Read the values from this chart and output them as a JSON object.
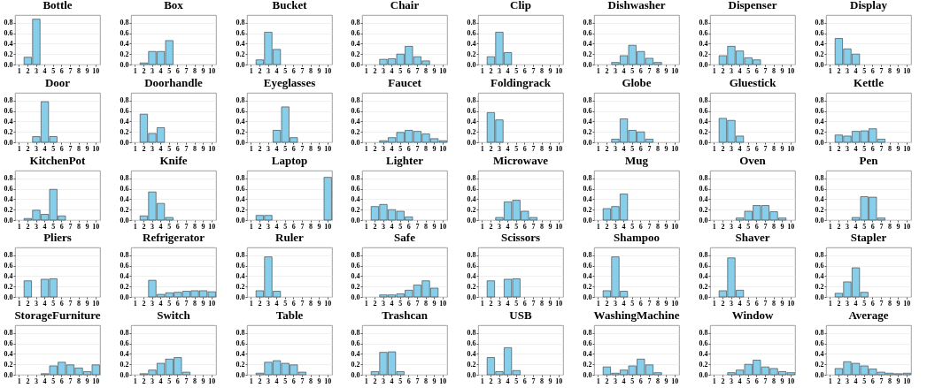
{
  "chart_data": [
    {
      "type": "bar",
      "title": "Bottle",
      "categories": [
        "1",
        "2",
        "3",
        "4",
        "5",
        "6",
        "7",
        "8",
        "9",
        "10"
      ],
      "values": [
        0,
        0.14,
        0.87,
        0,
        0,
        0,
        0,
        0,
        0,
        0
      ],
      "color": "#87ceeb",
      "ylim": [
        0,
        0.95
      ],
      "yticks": [
        {
          "value": 0,
          "label": "0.0"
        },
        {
          "value": 0.2,
          "label": "0.2"
        },
        {
          "value": 0.4,
          "label": "0.4"
        },
        {
          "value": 0.6,
          "label": "0.6"
        },
        {
          "value": 0.8,
          "label": "0.8"
        }
      ],
      "grid": "y"
    },
    {
      "type": "bar",
      "title": "Box",
      "categories": [
        "1",
        "2",
        "3",
        "4",
        "5",
        "6",
        "7",
        "8",
        "9",
        "10"
      ],
      "values": [
        0,
        0.03,
        0.25,
        0.25,
        0.46,
        0,
        0,
        0,
        0,
        0
      ],
      "color": "#87ceeb",
      "ylim": [
        0,
        0.95
      ],
      "yticks": [
        {
          "value": 0,
          "label": "0.0"
        },
        {
          "value": 0.2,
          "label": "0.2"
        },
        {
          "value": 0.4,
          "label": "0.4"
        },
        {
          "value": 0.6,
          "label": "0.6"
        },
        {
          "value": 0.8,
          "label": "0.8"
        }
      ],
      "grid": "y"
    },
    {
      "type": "bar",
      "title": "Bucket",
      "categories": [
        "1",
        "2",
        "3",
        "4",
        "5",
        "6",
        "7",
        "8",
        "9",
        "10"
      ],
      "values": [
        0,
        0.09,
        0.62,
        0.29,
        0,
        0,
        0,
        0,
        0,
        0
      ],
      "color": "#87ceeb",
      "ylim": [
        0,
        0.95
      ],
      "yticks": [
        {
          "value": 0,
          "label": "0.0"
        },
        {
          "value": 0.2,
          "label": "0.2"
        },
        {
          "value": 0.4,
          "label": "0.4"
        },
        {
          "value": 0.6,
          "label": "0.6"
        },
        {
          "value": 0.8,
          "label": "0.8"
        }
      ],
      "grid": "y"
    },
    {
      "type": "bar",
      "title": "Chair",
      "categories": [
        "1",
        "2",
        "3",
        "4",
        "5",
        "6",
        "7",
        "8",
        "9",
        "10"
      ],
      "values": [
        0,
        0,
        0.1,
        0.11,
        0.2,
        0.35,
        0.15,
        0.07,
        0,
        0
      ],
      "color": "#87ceeb",
      "ylim": [
        0,
        0.95
      ],
      "yticks": [
        {
          "value": 0,
          "label": "0.0"
        },
        {
          "value": 0.2,
          "label": "0.2"
        },
        {
          "value": 0.4,
          "label": "0.4"
        },
        {
          "value": 0.6,
          "label": "0.6"
        },
        {
          "value": 0.8,
          "label": "0.8"
        }
      ],
      "grid": "y"
    },
    {
      "type": "bar",
      "title": "Clip",
      "categories": [
        "1",
        "2",
        "3",
        "4",
        "5",
        "6",
        "7",
        "8",
        "9",
        "10"
      ],
      "values": [
        0,
        0.15,
        0.62,
        0.23,
        0,
        0,
        0,
        0,
        0,
        0
      ],
      "color": "#87ceeb",
      "ylim": [
        0,
        0.95
      ],
      "yticks": [
        {
          "value": 0,
          "label": "0.0"
        },
        {
          "value": 0.2,
          "label": "0.2"
        },
        {
          "value": 0.4,
          "label": "0.4"
        },
        {
          "value": 0.6,
          "label": "0.6"
        },
        {
          "value": 0.8,
          "label": "0.8"
        }
      ],
      "grid": "y"
    },
    {
      "type": "bar",
      "title": "Dishwasher",
      "categories": [
        "1",
        "2",
        "3",
        "4",
        "5",
        "6",
        "7",
        "8",
        "9",
        "10"
      ],
      "values": [
        0,
        0,
        0.04,
        0.17,
        0.37,
        0.25,
        0.12,
        0.04,
        0,
        0
      ],
      "color": "#87ceeb",
      "ylim": [
        0,
        0.95
      ],
      "yticks": [
        {
          "value": 0,
          "label": "0.0"
        },
        {
          "value": 0.2,
          "label": "0.2"
        },
        {
          "value": 0.4,
          "label": "0.4"
        },
        {
          "value": 0.6,
          "label": "0.6"
        },
        {
          "value": 0.8,
          "label": "0.8"
        }
      ],
      "grid": "y"
    },
    {
      "type": "bar",
      "title": "Dispenser",
      "categories": [
        "1",
        "2",
        "3",
        "4",
        "5",
        "6",
        "7",
        "8",
        "9",
        "10"
      ],
      "values": [
        0,
        0.17,
        0.35,
        0.26,
        0.13,
        0.09,
        0,
        0,
        0,
        0
      ],
      "color": "#87ceeb",
      "ylim": [
        0,
        0.95
      ],
      "yticks": [
        {
          "value": 0,
          "label": "0.0"
        },
        {
          "value": 0.2,
          "label": "0.2"
        },
        {
          "value": 0.4,
          "label": "0.4"
        },
        {
          "value": 0.6,
          "label": "0.6"
        },
        {
          "value": 0.8,
          "label": "0.8"
        }
      ],
      "grid": "y"
    },
    {
      "type": "bar",
      "title": "Display",
      "categories": [
        "1",
        "2",
        "3",
        "4",
        "5",
        "6",
        "7",
        "8",
        "9",
        "10"
      ],
      "values": [
        0,
        0.5,
        0.3,
        0.2,
        0,
        0,
        0,
        0,
        0,
        0
      ],
      "color": "#87ceeb",
      "ylim": [
        0,
        0.95
      ],
      "yticks": [
        {
          "value": 0,
          "label": "0.0"
        },
        {
          "value": 0.2,
          "label": "0.2"
        },
        {
          "value": 0.4,
          "label": "0.4"
        },
        {
          "value": 0.6,
          "label": "0.6"
        },
        {
          "value": 0.8,
          "label": "0.8"
        }
      ],
      "grid": "y"
    },
    {
      "type": "bar",
      "title": "Door",
      "categories": [
        "1",
        "2",
        "3",
        "4",
        "5",
        "6",
        "7",
        "8",
        "9",
        "10"
      ],
      "values": [
        0,
        0,
        0.11,
        0.78,
        0.11,
        0,
        0,
        0,
        0,
        0
      ],
      "color": "#87ceeb",
      "ylim": [
        0,
        0.95
      ],
      "yticks": [
        {
          "value": 0,
          "label": "0.0"
        },
        {
          "value": 0.2,
          "label": "0.2"
        },
        {
          "value": 0.4,
          "label": "0.4"
        },
        {
          "value": 0.6,
          "label": "0.6"
        },
        {
          "value": 0.8,
          "label": "0.8"
        }
      ],
      "grid": "y"
    },
    {
      "type": "bar",
      "title": "Doorhandle",
      "categories": [
        "1",
        "2",
        "3",
        "4",
        "5",
        "6",
        "7",
        "8",
        "9",
        "10"
      ],
      "values": [
        0,
        0.54,
        0.17,
        0.28,
        0,
        0,
        0,
        0,
        0,
        0
      ],
      "color": "#87ceeb",
      "ylim": [
        0,
        0.95
      ],
      "yticks": [
        {
          "value": 0,
          "label": "0.0"
        },
        {
          "value": 0.2,
          "label": "0.2"
        },
        {
          "value": 0.4,
          "label": "0.4"
        },
        {
          "value": 0.6,
          "label": "0.6"
        },
        {
          "value": 0.8,
          "label": "0.8"
        }
      ],
      "grid": "y"
    },
    {
      "type": "bar",
      "title": "Eyeglasses",
      "categories": [
        "1",
        "2",
        "3",
        "4",
        "5",
        "6",
        "7",
        "8",
        "9",
        "10"
      ],
      "values": [
        0,
        0,
        0,
        0.23,
        0.68,
        0.09,
        0,
        0,
        0,
        0
      ],
      "color": "#87ceeb",
      "ylim": [
        0,
        0.95
      ],
      "yticks": [
        {
          "value": 0,
          "label": "0.0"
        },
        {
          "value": 0.2,
          "label": "0.2"
        },
        {
          "value": 0.4,
          "label": "0.4"
        },
        {
          "value": 0.6,
          "label": "0.6"
        },
        {
          "value": 0.8,
          "label": "0.8"
        }
      ],
      "grid": "y"
    },
    {
      "type": "bar",
      "title": "Faucet",
      "categories": [
        "1",
        "2",
        "3",
        "4",
        "5",
        "6",
        "7",
        "8",
        "9",
        "10"
      ],
      "values": [
        0,
        0,
        0.03,
        0.09,
        0.19,
        0.23,
        0.21,
        0.16,
        0.07,
        0.03
      ],
      "color": "#87ceeb",
      "ylim": [
        0,
        0.95
      ],
      "yticks": [
        {
          "value": 0,
          "label": "0.0"
        },
        {
          "value": 0.2,
          "label": "0.2"
        },
        {
          "value": 0.4,
          "label": "0.4"
        },
        {
          "value": 0.6,
          "label": "0.6"
        },
        {
          "value": 0.8,
          "label": "0.8"
        }
      ],
      "grid": "y"
    },
    {
      "type": "bar",
      "title": "Foldingrack",
      "categories": [
        "1",
        "2",
        "3",
        "4",
        "5",
        "6",
        "7",
        "8",
        "9",
        "10"
      ],
      "values": [
        0,
        0.57,
        0.43,
        0,
        0,
        0,
        0,
        0,
        0,
        0
      ],
      "color": "#87ceeb",
      "ylim": [
        0,
        0.95
      ],
      "yticks": [
        {
          "value": 0,
          "label": "0.0"
        },
        {
          "value": 0.2,
          "label": "0.2"
        },
        {
          "value": 0.4,
          "label": "0.4"
        },
        {
          "value": 0.6,
          "label": "0.6"
        },
        {
          "value": 0.8,
          "label": "0.8"
        }
      ],
      "grid": "y"
    },
    {
      "type": "bar",
      "title": "Globe",
      "categories": [
        "1",
        "2",
        "3",
        "4",
        "5",
        "6",
        "7",
        "8",
        "9",
        "10"
      ],
      "values": [
        0,
        0,
        0.06,
        0.45,
        0.23,
        0.2,
        0.06,
        0,
        0,
        0
      ],
      "color": "#87ceeb",
      "ylim": [
        0,
        0.95
      ],
      "yticks": [
        {
          "value": 0,
          "label": "0.0"
        },
        {
          "value": 0.2,
          "label": "0.2"
        },
        {
          "value": 0.4,
          "label": "0.4"
        },
        {
          "value": 0.6,
          "label": "0.6"
        },
        {
          "value": 0.8,
          "label": "0.8"
        }
      ],
      "grid": "y"
    },
    {
      "type": "bar",
      "title": "Gluestick",
      "categories": [
        "1",
        "2",
        "3",
        "4",
        "5",
        "6",
        "7",
        "8",
        "9",
        "10"
      ],
      "values": [
        0,
        0.46,
        0.42,
        0.12,
        0,
        0,
        0,
        0,
        0,
        0
      ],
      "color": "#87ceeb",
      "ylim": [
        0,
        0.95
      ],
      "yticks": [
        {
          "value": 0,
          "label": "0.0"
        },
        {
          "value": 0.2,
          "label": "0.2"
        },
        {
          "value": 0.4,
          "label": "0.4"
        },
        {
          "value": 0.6,
          "label": "0.6"
        },
        {
          "value": 0.8,
          "label": "0.8"
        }
      ],
      "grid": "y"
    },
    {
      "type": "bar",
      "title": "Kettle",
      "categories": [
        "1",
        "2",
        "3",
        "4",
        "5",
        "6",
        "7",
        "8",
        "9",
        "10"
      ],
      "values": [
        0,
        0.14,
        0.12,
        0.21,
        0.22,
        0.26,
        0.06,
        0,
        0,
        0
      ],
      "color": "#87ceeb",
      "ylim": [
        0,
        0.95
      ],
      "yticks": [
        {
          "value": 0,
          "label": "0.0"
        },
        {
          "value": 0.2,
          "label": "0.2"
        },
        {
          "value": 0.4,
          "label": "0.4"
        },
        {
          "value": 0.6,
          "label": "0.6"
        },
        {
          "value": 0.8,
          "label": "0.8"
        }
      ],
      "grid": "y"
    },
    {
      "type": "bar",
      "title": "KitchenPot",
      "categories": [
        "1",
        "2",
        "3",
        "4",
        "5",
        "6",
        "7",
        "8",
        "9",
        "10"
      ],
      "values": [
        0,
        0.03,
        0.19,
        0.11,
        0.59,
        0.08,
        0,
        0,
        0,
        0
      ],
      "color": "#87ceeb",
      "ylim": [
        0,
        0.95
      ],
      "yticks": [
        {
          "value": 0,
          "label": "0.0"
        },
        {
          "value": 0.2,
          "label": "0.2"
        },
        {
          "value": 0.4,
          "label": "0.4"
        },
        {
          "value": 0.6,
          "label": "0.6"
        },
        {
          "value": 0.8,
          "label": "0.8"
        }
      ],
      "grid": "y"
    },
    {
      "type": "bar",
      "title": "Knife",
      "categories": [
        "1",
        "2",
        "3",
        "4",
        "5",
        "6",
        "7",
        "8",
        "9",
        "10"
      ],
      "values": [
        0,
        0.08,
        0.54,
        0.32,
        0.05,
        0,
        0,
        0,
        0,
        0
      ],
      "color": "#87ceeb",
      "ylim": [
        0,
        0.95
      ],
      "yticks": [
        {
          "value": 0,
          "label": "0.0"
        },
        {
          "value": 0.2,
          "label": "0.2"
        },
        {
          "value": 0.4,
          "label": "0.4"
        },
        {
          "value": 0.6,
          "label": "0.6"
        },
        {
          "value": 0.8,
          "label": "0.8"
        }
      ],
      "grid": "y"
    },
    {
      "type": "bar",
      "title": "Laptop",
      "categories": [
        "1",
        "2",
        "3",
        "4",
        "5",
        "6",
        "7",
        "8",
        "9",
        "10"
      ],
      "values": [
        0,
        0.09,
        0.09,
        0,
        0,
        0,
        0,
        0,
        0,
        0.82
      ],
      "color": "#87ceeb",
      "ylim": [
        0,
        0.95
      ],
      "yticks": [
        {
          "value": 0,
          "label": "0.0"
        },
        {
          "value": 0.2,
          "label": "0.2"
        },
        {
          "value": 0.4,
          "label": "0.4"
        },
        {
          "value": 0.6,
          "label": "0.6"
        },
        {
          "value": 0.8,
          "label": "0.8"
        }
      ],
      "grid": "y"
    },
    {
      "type": "bar",
      "title": "Lighter",
      "categories": [
        "1",
        "2",
        "3",
        "4",
        "5",
        "6",
        "7",
        "8",
        "9",
        "10"
      ],
      "values": [
        0,
        0.26,
        0.3,
        0.2,
        0.17,
        0.06,
        0,
        0,
        0,
        0
      ],
      "color": "#87ceeb",
      "ylim": [
        0,
        0.95
      ],
      "yticks": [
        {
          "value": 0,
          "label": "0.0"
        },
        {
          "value": 0.2,
          "label": "0.2"
        },
        {
          "value": 0.4,
          "label": "0.4"
        },
        {
          "value": 0.6,
          "label": "0.6"
        },
        {
          "value": 0.8,
          "label": "0.8"
        }
      ],
      "grid": "y"
    },
    {
      "type": "bar",
      "title": "Microwave",
      "categories": [
        "1",
        "2",
        "3",
        "4",
        "5",
        "6",
        "7",
        "8",
        "9",
        "10"
      ],
      "values": [
        0,
        0,
        0.05,
        0.35,
        0.38,
        0.17,
        0.05,
        0,
        0,
        0
      ],
      "color": "#87ceeb",
      "ylim": [
        0,
        0.95
      ],
      "yticks": [
        {
          "value": 0,
          "label": "0.0"
        },
        {
          "value": 0.2,
          "label": "0.2"
        },
        {
          "value": 0.4,
          "label": "0.4"
        },
        {
          "value": 0.6,
          "label": "0.6"
        },
        {
          "value": 0.8,
          "label": "0.8"
        }
      ],
      "grid": "y"
    },
    {
      "type": "bar",
      "title": "Mug",
      "categories": [
        "1",
        "2",
        "3",
        "4",
        "5",
        "6",
        "7",
        "8",
        "9",
        "10"
      ],
      "values": [
        0,
        0.22,
        0.26,
        0.5,
        0,
        0,
        0,
        0,
        0,
        0
      ],
      "color": "#87ceeb",
      "ylim": [
        0,
        0.95
      ],
      "yticks": [
        {
          "value": 0,
          "label": "0.0"
        },
        {
          "value": 0.2,
          "label": "0.2"
        },
        {
          "value": 0.4,
          "label": "0.4"
        },
        {
          "value": 0.6,
          "label": "0.6"
        },
        {
          "value": 0.8,
          "label": "0.8"
        }
      ],
      "grid": "y"
    },
    {
      "type": "bar",
      "title": "Oven",
      "categories": [
        "1",
        "2",
        "3",
        "4",
        "5",
        "6",
        "7",
        "8",
        "9",
        "10"
      ],
      "values": [
        0,
        0,
        0,
        0.04,
        0.17,
        0.28,
        0.28,
        0.16,
        0.04,
        0
      ],
      "color": "#87ceeb",
      "ylim": [
        0,
        0.95
      ],
      "yticks": [
        {
          "value": 0,
          "label": "0.0"
        },
        {
          "value": 0.2,
          "label": "0.2"
        },
        {
          "value": 0.4,
          "label": "0.4"
        },
        {
          "value": 0.6,
          "label": "0.6"
        },
        {
          "value": 0.8,
          "label": "0.8"
        }
      ],
      "grid": "y"
    },
    {
      "type": "bar",
      "title": "Pen",
      "categories": [
        "1",
        "2",
        "3",
        "4",
        "5",
        "6",
        "7",
        "8",
        "9",
        "10"
      ],
      "values": [
        0,
        0,
        0,
        0.05,
        0.45,
        0.44,
        0.04,
        0,
        0,
        0
      ],
      "color": "#87ceeb",
      "ylim": [
        0,
        0.95
      ],
      "yticks": [
        {
          "value": 0,
          "label": "0.0"
        },
        {
          "value": 0.2,
          "label": "0.2"
        },
        {
          "value": 0.4,
          "label": "0.4"
        },
        {
          "value": 0.6,
          "label": "0.6"
        },
        {
          "value": 0.8,
          "label": "0.8"
        }
      ],
      "grid": "y"
    },
    {
      "type": "bar",
      "title": "Pliers",
      "categories": [
        "1",
        "2",
        "3",
        "4",
        "5",
        "6",
        "7",
        "8",
        "9",
        "10"
      ],
      "values": [
        0,
        0.31,
        0,
        0.34,
        0.35,
        0,
        0,
        0,
        0,
        0
      ],
      "color": "#87ceeb",
      "ylim": [
        0,
        0.95
      ],
      "yticks": [
        {
          "value": 0,
          "label": "0.0"
        },
        {
          "value": 0.2,
          "label": "0.2"
        },
        {
          "value": 0.4,
          "label": "0.4"
        },
        {
          "value": 0.6,
          "label": "0.6"
        },
        {
          "value": 0.8,
          "label": "0.8"
        }
      ],
      "grid": "y"
    },
    {
      "type": "bar",
      "title": "Refrigerator",
      "categories": [
        "1",
        "2",
        "3",
        "4",
        "5",
        "6",
        "7",
        "8",
        "9",
        "10"
      ],
      "values": [
        0,
        0,
        0.32,
        0.05,
        0.08,
        0.09,
        0.11,
        0.12,
        0.12,
        0.1
      ],
      "color": "#87ceeb",
      "ylim": [
        0,
        0.95
      ],
      "yticks": [
        {
          "value": 0,
          "label": "0.0"
        },
        {
          "value": 0.2,
          "label": "0.2"
        },
        {
          "value": 0.4,
          "label": "0.4"
        },
        {
          "value": 0.6,
          "label": "0.6"
        },
        {
          "value": 0.8,
          "label": "0.8"
        }
      ],
      "grid": "y"
    },
    {
      "type": "bar",
      "title": "Ruler",
      "categories": [
        "1",
        "2",
        "3",
        "4",
        "5",
        "6",
        "7",
        "8",
        "9",
        "10"
      ],
      "values": [
        0,
        0.12,
        0.77,
        0.11,
        0,
        0,
        0,
        0,
        0,
        0
      ],
      "color": "#87ceeb",
      "ylim": [
        0,
        0.95
      ],
      "yticks": [
        {
          "value": 0,
          "label": "0.0"
        },
        {
          "value": 0.2,
          "label": "0.2"
        },
        {
          "value": 0.4,
          "label": "0.4"
        },
        {
          "value": 0.6,
          "label": "0.6"
        },
        {
          "value": 0.8,
          "label": "0.8"
        }
      ],
      "grid": "y"
    },
    {
      "type": "bar",
      "title": "Safe",
      "categories": [
        "1",
        "2",
        "3",
        "4",
        "5",
        "6",
        "7",
        "8",
        "9",
        "10"
      ],
      "values": [
        0,
        0,
        0.04,
        0.04,
        0.06,
        0.13,
        0.23,
        0.31,
        0.17,
        0
      ],
      "color": "#87ceeb",
      "ylim": [
        0,
        0.95
      ],
      "yticks": [
        {
          "value": 0,
          "label": "0.0"
        },
        {
          "value": 0.2,
          "label": "0.2"
        },
        {
          "value": 0.4,
          "label": "0.4"
        },
        {
          "value": 0.6,
          "label": "0.6"
        },
        {
          "value": 0.8,
          "label": "0.8"
        }
      ],
      "grid": "y"
    },
    {
      "type": "bar",
      "title": "Scissors",
      "categories": [
        "1",
        "2",
        "3",
        "4",
        "5",
        "6",
        "7",
        "8",
        "9",
        "10"
      ],
      "values": [
        0,
        0.31,
        0,
        0.34,
        0.35,
        0,
        0,
        0,
        0,
        0
      ],
      "color": "#87ceeb",
      "ylim": [
        0,
        0.95
      ],
      "yticks": [
        {
          "value": 0,
          "label": "0.0"
        },
        {
          "value": 0.2,
          "label": "0.2"
        },
        {
          "value": 0.4,
          "label": "0.4"
        },
        {
          "value": 0.6,
          "label": "0.6"
        },
        {
          "value": 0.8,
          "label": "0.8"
        }
      ],
      "grid": "y"
    },
    {
      "type": "bar",
      "title": "Shampoo",
      "categories": [
        "1",
        "2",
        "3",
        "4",
        "5",
        "6",
        "7",
        "8",
        "9",
        "10"
      ],
      "values": [
        0,
        0.12,
        0.77,
        0.11,
        0,
        0,
        0,
        0,
        0,
        0
      ],
      "color": "#87ceeb",
      "ylim": [
        0,
        0.95
      ],
      "yticks": [
        {
          "value": 0,
          "label": "0.0"
        },
        {
          "value": 0.2,
          "label": "0.2"
        },
        {
          "value": 0.4,
          "label": "0.4"
        },
        {
          "value": 0.6,
          "label": "0.6"
        },
        {
          "value": 0.8,
          "label": "0.8"
        }
      ],
      "grid": "y"
    },
    {
      "type": "bar",
      "title": "Shaver",
      "categories": [
        "1",
        "2",
        "3",
        "4",
        "5",
        "6",
        "7",
        "8",
        "9",
        "10"
      ],
      "values": [
        0,
        0.12,
        0.75,
        0.13,
        0,
        0,
        0,
        0,
        0,
        0
      ],
      "color": "#87ceeb",
      "ylim": [
        0,
        0.95
      ],
      "yticks": [
        {
          "value": 0,
          "label": "0.0"
        },
        {
          "value": 0.2,
          "label": "0.2"
        },
        {
          "value": 0.4,
          "label": "0.4"
        },
        {
          "value": 0.6,
          "label": "0.6"
        },
        {
          "value": 0.8,
          "label": "0.8"
        }
      ],
      "grid": "y"
    },
    {
      "type": "bar",
      "title": "Stapler",
      "categories": [
        "1",
        "2",
        "3",
        "4",
        "5",
        "6",
        "7",
        "8",
        "9",
        "10"
      ],
      "values": [
        0,
        0.07,
        0.29,
        0.56,
        0.09,
        0,
        0,
        0,
        0,
        0
      ],
      "color": "#87ceeb",
      "ylim": [
        0,
        0.95
      ],
      "yticks": [
        {
          "value": 0,
          "label": "0.0"
        },
        {
          "value": 0.2,
          "label": "0.2"
        },
        {
          "value": 0.4,
          "label": "0.4"
        },
        {
          "value": 0.6,
          "label": "0.6"
        },
        {
          "value": 0.8,
          "label": "0.8"
        }
      ],
      "grid": "y"
    },
    {
      "type": "bar",
      "title": "StorageFurniture",
      "categories": [
        "1",
        "2",
        "3",
        "4",
        "5",
        "6",
        "7",
        "8",
        "9",
        "10"
      ],
      "values": [
        0,
        0,
        0,
        0.02,
        0.17,
        0.24,
        0.19,
        0.13,
        0.06,
        0.19
      ],
      "color": "#87ceeb",
      "ylim": [
        0,
        0.95
      ],
      "yticks": [
        {
          "value": 0,
          "label": "0.0"
        },
        {
          "value": 0.2,
          "label": "0.2"
        },
        {
          "value": 0.4,
          "label": "0.4"
        },
        {
          "value": 0.6,
          "label": "0.6"
        },
        {
          "value": 0.8,
          "label": "0.8"
        }
      ],
      "grid": "y"
    },
    {
      "type": "bar",
      "title": "Switch",
      "categories": [
        "1",
        "2",
        "3",
        "4",
        "5",
        "6",
        "7",
        "8",
        "9",
        "10"
      ],
      "values": [
        0,
        0.02,
        0.09,
        0.22,
        0.3,
        0.33,
        0.05,
        0,
        0,
        0
      ],
      "color": "#87ceeb",
      "ylim": [
        0,
        0.95
      ],
      "yticks": [
        {
          "value": 0,
          "label": "0.0"
        },
        {
          "value": 0.2,
          "label": "0.2"
        },
        {
          "value": 0.4,
          "label": "0.4"
        },
        {
          "value": 0.6,
          "label": "0.6"
        },
        {
          "value": 0.8,
          "label": "0.8"
        }
      ],
      "grid": "y"
    },
    {
      "type": "bar",
      "title": "Table",
      "categories": [
        "1",
        "2",
        "3",
        "4",
        "5",
        "6",
        "7",
        "8",
        "9",
        "10"
      ],
      "values": [
        0,
        0.03,
        0.24,
        0.27,
        0.22,
        0.19,
        0.05,
        0,
        0,
        0
      ],
      "color": "#87ceeb",
      "ylim": [
        0,
        0.95
      ],
      "yticks": [
        {
          "value": 0,
          "label": "0.0"
        },
        {
          "value": 0.2,
          "label": "0.2"
        },
        {
          "value": 0.4,
          "label": "0.4"
        },
        {
          "value": 0.6,
          "label": "0.6"
        },
        {
          "value": 0.8,
          "label": "0.8"
        }
      ],
      "grid": "y"
    },
    {
      "type": "bar",
      "title": "Trashcan",
      "categories": [
        "1",
        "2",
        "3",
        "4",
        "5",
        "6",
        "7",
        "8",
        "9",
        "10"
      ],
      "values": [
        0,
        0.06,
        0.43,
        0.44,
        0.06,
        0,
        0,
        0,
        0,
        0
      ],
      "color": "#87ceeb",
      "ylim": [
        0,
        0.95
      ],
      "yticks": [
        {
          "value": 0,
          "label": "0.0"
        },
        {
          "value": 0.2,
          "label": "0.2"
        },
        {
          "value": 0.4,
          "label": "0.4"
        },
        {
          "value": 0.6,
          "label": "0.6"
        },
        {
          "value": 0.8,
          "label": "0.8"
        }
      ],
      "grid": "y"
    },
    {
      "type": "bar",
      "title": "USB",
      "categories": [
        "1",
        "2",
        "3",
        "4",
        "5",
        "6",
        "7",
        "8",
        "9",
        "10"
      ],
      "values": [
        0,
        0.33,
        0.06,
        0.52,
        0.08,
        0,
        0,
        0,
        0,
        0
      ],
      "color": "#87ceeb",
      "ylim": [
        0,
        0.95
      ],
      "yticks": [
        {
          "value": 0,
          "label": "0.0"
        },
        {
          "value": 0.2,
          "label": "0.2"
        },
        {
          "value": 0.4,
          "label": "0.4"
        },
        {
          "value": 0.6,
          "label": "0.6"
        },
        {
          "value": 0.8,
          "label": "0.8"
        }
      ],
      "grid": "y"
    },
    {
      "type": "bar",
      "title": "WashingMachine",
      "categories": [
        "1",
        "2",
        "3",
        "4",
        "5",
        "6",
        "7",
        "8",
        "9",
        "10"
      ],
      "values": [
        0,
        0.15,
        0.03,
        0.09,
        0.17,
        0.3,
        0.19,
        0.04,
        0,
        0
      ],
      "color": "#87ceeb",
      "ylim": [
        0,
        0.95
      ],
      "yticks": [
        {
          "value": 0,
          "label": "0.0"
        },
        {
          "value": 0.2,
          "label": "0.2"
        },
        {
          "value": 0.4,
          "label": "0.4"
        },
        {
          "value": 0.6,
          "label": "0.6"
        },
        {
          "value": 0.8,
          "label": "0.8"
        }
      ],
      "grid": "y"
    },
    {
      "type": "bar",
      "title": "Window",
      "categories": [
        "1",
        "2",
        "3",
        "4",
        "5",
        "6",
        "7",
        "8",
        "9",
        "10"
      ],
      "values": [
        0,
        0,
        0.04,
        0.09,
        0.2,
        0.28,
        0.15,
        0.12,
        0.06,
        0.04
      ],
      "color": "#87ceeb",
      "ylim": [
        0,
        0.95
      ],
      "yticks": [
        {
          "value": 0,
          "label": "0.0"
        },
        {
          "value": 0.2,
          "label": "0.2"
        },
        {
          "value": 0.4,
          "label": "0.4"
        },
        {
          "value": 0.6,
          "label": "0.6"
        },
        {
          "value": 0.8,
          "label": "0.8"
        }
      ],
      "grid": "y"
    },
    {
      "type": "bar",
      "title": "Average",
      "categories": [
        "1",
        "2",
        "3",
        "4",
        "5",
        "6",
        "7",
        "8",
        "9",
        "10"
      ],
      "values": [
        0,
        0.12,
        0.25,
        0.22,
        0.17,
        0.11,
        0.05,
        0.03,
        0.02,
        0.03
      ],
      "color": "#87ceeb",
      "ylim": [
        0,
        0.95
      ],
      "yticks": [
        {
          "value": 0,
          "label": "0.0"
        },
        {
          "value": 0.2,
          "label": "0.2"
        },
        {
          "value": 0.4,
          "label": "0.4"
        },
        {
          "value": 0.6,
          "label": "0.6"
        },
        {
          "value": 0.8,
          "label": "0.8"
        }
      ],
      "grid": "y"
    }
  ]
}
